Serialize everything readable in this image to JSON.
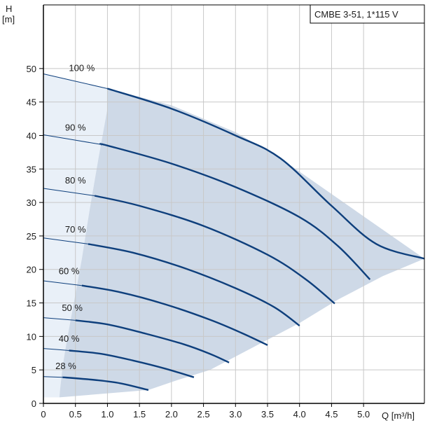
{
  "chart_data": {
    "type": "line",
    "legend_box": "CMBE 3-51, 1*115 V",
    "x_axis": {
      "label": "Q [m³/h]",
      "range": [
        0,
        5.95
      ],
      "ticks": [
        0,
        0.5,
        1.0,
        1.5,
        2.0,
        2.5,
        3.0,
        3.5,
        4.0,
        4.5,
        5.0
      ],
      "tick_labels": [
        "0",
        "0.5",
        "1.0",
        "1.5",
        "2.0",
        "2.5",
        "3.0",
        "3.5",
        "4.0",
        "4.5",
        "5.0"
      ]
    },
    "y_axis": {
      "label_top": "H",
      "label_unit": "[m]",
      "range": [
        0,
        59.5
      ],
      "ticks": [
        0,
        5,
        10,
        15,
        20,
        25,
        30,
        35,
        40,
        45,
        50
      ],
      "tick_labels": [
        "0",
        "5",
        "10",
        "15",
        "20",
        "25",
        "30",
        "35",
        "40",
        "45",
        "50"
      ]
    },
    "grid": true,
    "colors": {
      "curve": "#0e3f7c",
      "region": "#ced9e7",
      "low_flow_region": "#e9f0f8",
      "grid": "#c8c8c8",
      "axis": "#000000"
    },
    "operating_region": [
      [
        1.0,
        47.0
      ],
      [
        1.0,
        44.0
      ],
      [
        0.86,
        36.6
      ],
      [
        0.72,
        28.8
      ],
      [
        0.6,
        21.6
      ],
      [
        0.47,
        14.8
      ],
      [
        0.37,
        9.6
      ],
      [
        0.3,
        5.5
      ],
      [
        0.26,
        2.1
      ],
      [
        0.25,
        0.9
      ],
      [
        1.64,
        2.0
      ],
      [
        2.1,
        3.5
      ],
      [
        2.6,
        5.0
      ],
      [
        3.0,
        7.0
      ],
      [
        3.4,
        9.0
      ],
      [
        4.0,
        12.0
      ],
      [
        4.6,
        15.5
      ],
      [
        5.3,
        19.0
      ],
      [
        5.95,
        21.6
      ],
      [
        3.7,
        36.6
      ],
      [
        3.0,
        40.5
      ],
      [
        2.0,
        44.5
      ],
      [
        1.0,
        47.0
      ]
    ],
    "low_flow_region": [
      [
        0,
        49.2
      ],
      [
        1.0,
        47.0
      ],
      [
        1.0,
        44.0
      ],
      [
        0.86,
        36.6
      ],
      [
        0.72,
        28.8
      ],
      [
        0.6,
        21.6
      ],
      [
        0.47,
        14.8
      ],
      [
        0.37,
        9.6
      ],
      [
        0.3,
        5.5
      ],
      [
        0.26,
        2.1
      ],
      [
        0.25,
        0.9
      ],
      [
        0,
        0.9
      ]
    ],
    "series": [
      {
        "name": "100 %",
        "points": [
          [
            0,
            49.2
          ],
          [
            1.0,
            47.0
          ],
          [
            2.0,
            44.0
          ],
          [
            3.0,
            40.0
          ],
          [
            3.7,
            36.6
          ],
          [
            4.5,
            29.5
          ],
          [
            5.2,
            23.8
          ],
          [
            5.95,
            21.6
          ]
        ],
        "thin_until": 1.0
      },
      {
        "name": "90 %",
        "points": [
          [
            0,
            40.1
          ],
          [
            1.0,
            38.5
          ],
          [
            2.0,
            35.8
          ],
          [
            3.0,
            32.3
          ],
          [
            4.0,
            27.8
          ],
          [
            4.6,
            23.5
          ],
          [
            5.1,
            18.5
          ]
        ],
        "thin_until": 0.9
      },
      {
        "name": "80 %",
        "points": [
          [
            0,
            32.1
          ],
          [
            0.8,
            31.0
          ],
          [
            1.5,
            29.5
          ],
          [
            2.5,
            26.5
          ],
          [
            3.5,
            22.2
          ],
          [
            4.1,
            18.5
          ],
          [
            4.55,
            14.9
          ]
        ],
        "thin_until": 0.8
      },
      {
        "name": "70 %",
        "points": [
          [
            0,
            24.7
          ],
          [
            0.7,
            23.8
          ],
          [
            1.4,
            22.5
          ],
          [
            2.2,
            20.2
          ],
          [
            3.0,
            17.2
          ],
          [
            3.6,
            14.4
          ],
          [
            4.0,
            11.6
          ]
        ],
        "thin_until": 0.7
      },
      {
        "name": "60 %",
        "points": [
          [
            0,
            18.3
          ],
          [
            0.6,
            17.6
          ],
          [
            1.2,
            16.6
          ],
          [
            1.9,
            14.8
          ],
          [
            2.6,
            12.5
          ],
          [
            3.1,
            10.5
          ],
          [
            3.5,
            8.7
          ]
        ],
        "thin_until": 0.6
      },
      {
        "name": "50 %",
        "points": [
          [
            0,
            12.8
          ],
          [
            0.5,
            12.4
          ],
          [
            1.0,
            11.8
          ],
          [
            1.6,
            10.4
          ],
          [
            2.2,
            8.8
          ],
          [
            2.6,
            7.4
          ],
          [
            2.9,
            6.1
          ]
        ],
        "thin_until": 0.5
      },
      {
        "name": "40 %",
        "points": [
          [
            0,
            8.2
          ],
          [
            0.4,
            7.9
          ],
          [
            0.9,
            7.4
          ],
          [
            1.4,
            6.4
          ],
          [
            1.9,
            5.2
          ],
          [
            2.35,
            3.9
          ]
        ],
        "thin_until": 0.4
      },
      {
        "name": "28 %",
        "points": [
          [
            0,
            4.0
          ],
          [
            0.3,
            3.9
          ],
          [
            0.8,
            3.5
          ],
          [
            1.2,
            3.0
          ],
          [
            1.64,
            2.0
          ]
        ],
        "thin_until": 0.3
      }
    ],
    "curve_labels": [
      {
        "text": "100 %",
        "x": 0.6,
        "y": 49.2
      },
      {
        "text": "90 %",
        "x": 0.5,
        "y": 40.3
      },
      {
        "text": "80 %",
        "x": 0.5,
        "y": 32.4
      },
      {
        "text": "70 %",
        "x": 0.5,
        "y": 25.1
      },
      {
        "text": "60 %",
        "x": 0.4,
        "y": 18.9
      },
      {
        "text": "50 %",
        "x": 0.45,
        "y": 13.4
      },
      {
        "text": "40 %",
        "x": 0.4,
        "y": 8.8
      },
      {
        "text": "28 %",
        "x": 0.35,
        "y": 4.7
      }
    ]
  }
}
